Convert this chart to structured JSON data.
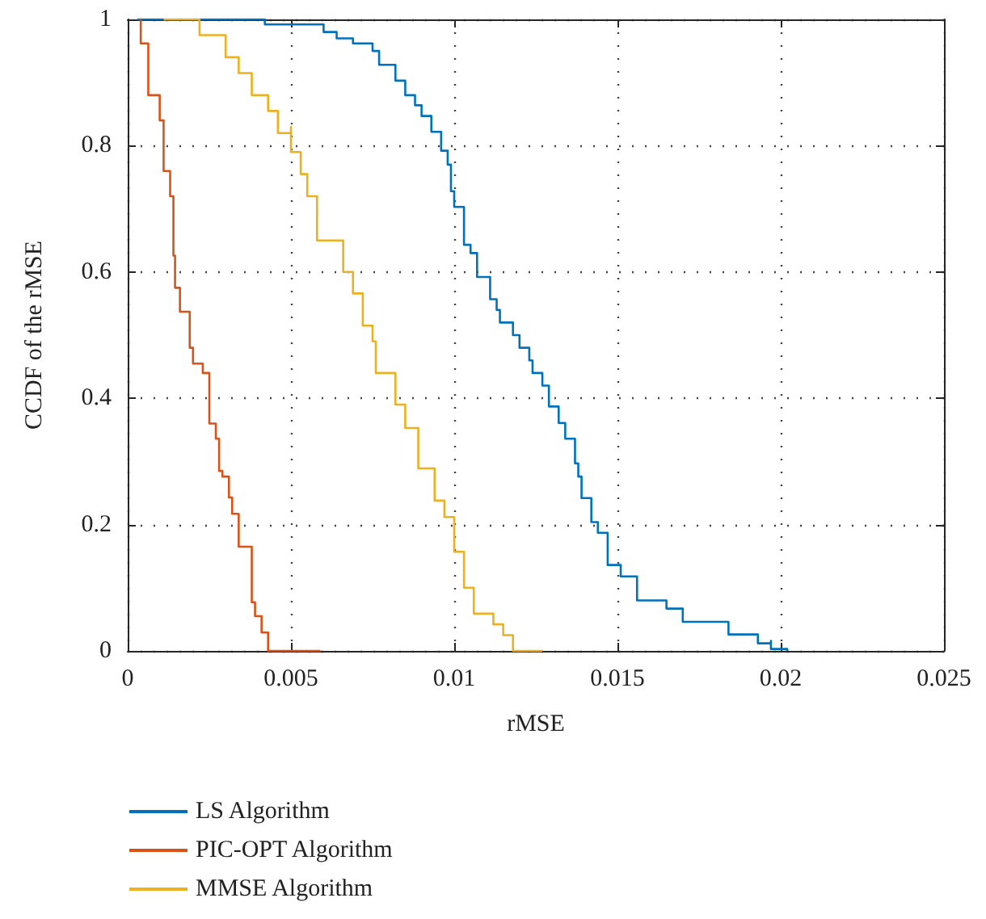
{
  "chart_data": {
    "type": "step",
    "xlabel": "rMSE",
    "ylabel": "CCDF of the rMSE",
    "xlim": [
      0,
      0.025
    ],
    "ylim": [
      0,
      1
    ],
    "xticks": [
      0,
      0.005,
      0.01,
      0.015,
      0.02,
      0.025
    ],
    "yticks": [
      0,
      0.2,
      0.4,
      0.6,
      0.8,
      1
    ],
    "grid": true,
    "legend": "bottom",
    "marker": "none",
    "line_style": "solid",
    "series": [
      {
        "name": "LS Algorithm",
        "color": "#0072bd",
        "x": [
          0.0003,
          0.0042,
          0.0042,
          0.006,
          0.006,
          0.0064,
          0.0069,
          0.0075,
          0.0077,
          0.0082,
          0.0082,
          0.0085,
          0.0088,
          0.009,
          0.0093,
          0.0096,
          0.0098,
          0.0099,
          0.01,
          0.0103,
          0.0103,
          0.0105,
          0.0107,
          0.0107,
          0.0111,
          0.0111,
          0.0113,
          0.0114,
          0.0118,
          0.012,
          0.0123,
          0.0124,
          0.0127,
          0.0129,
          0.0132,
          0.0134,
          0.0137,
          0.0138,
          0.0139,
          0.0142,
          0.0144,
          0.0147,
          0.0147,
          0.0151,
          0.0156,
          0.0156,
          0.0165,
          0.017,
          0.0184,
          0.0184,
          0.0191,
          0.0193,
          0.0197,
          0.0197,
          0.0202,
          0.0202
        ],
        "values": [
          1,
          1,
          0.992,
          0.992,
          0.98,
          0.97,
          0.962,
          0.95,
          0.928,
          0.928,
          0.903,
          0.88,
          0.864,
          0.847,
          0.822,
          0.792,
          0.77,
          0.728,
          0.703,
          0.703,
          0.643,
          0.63,
          0.617,
          0.592,
          0.592,
          0.557,
          0.54,
          0.52,
          0.5,
          0.48,
          0.46,
          0.44,
          0.42,
          0.387,
          0.361,
          0.336,
          0.297,
          0.276,
          0.242,
          0.204,
          0.187,
          0.165,
          0.136,
          0.118,
          0.097,
          0.08,
          0.067,
          0.046,
          0.044,
          0.026,
          0.026,
          0.012,
          0.016,
          0.003,
          0.003,
          0
        ]
      },
      {
        "name": "PIC-OPT Algorithm",
        "color": "#d95319",
        "x": [
          0.0004,
          0.0004,
          0.00063,
          0.00063,
          0.00088,
          0.00098,
          0.0011,
          0.0013,
          0.0014,
          0.00145,
          0.0016,
          0.0016,
          0.0019,
          0.002,
          0.0023,
          0.0025,
          0.0025,
          0.0027,
          0.0028,
          0.0029,
          0.0031,
          0.0032,
          0.0034,
          0.0034,
          0.0038,
          0.0039,
          0.0041,
          0.0043,
          0.0059
        ],
        "values": [
          1,
          0.962,
          0.962,
          0.88,
          0.88,
          0.84,
          0.76,
          0.72,
          0.626,
          0.575,
          0.557,
          0.537,
          0.48,
          0.455,
          0.44,
          0.404,
          0.36,
          0.336,
          0.285,
          0.276,
          0.243,
          0.217,
          0.2,
          0.165,
          0.077,
          0.055,
          0.029,
          0,
          0
        ]
      },
      {
        "name": "MMSE Algorithm",
        "color": "#edb120",
        "x": [
          0.0011,
          0.0022,
          0.0022,
          0.0025,
          0.003,
          0.0034,
          0.0034,
          0.0037,
          0.0038,
          0.0043,
          0.0043,
          0.0046,
          0.0046,
          0.005,
          0.005,
          0.0053,
          0.0053,
          0.0055,
          0.0055,
          0.0058,
          0.0058,
          0.0064,
          0.0066,
          0.0069,
          0.0072,
          0.0072,
          0.0075,
          0.0076,
          0.0082,
          0.0082,
          0.0085,
          0.0085,
          0.0089,
          0.0089,
          0.0094,
          0.0094,
          0.0097,
          0.0097,
          0.01,
          0.0103,
          0.0103,
          0.0106,
          0.0112,
          0.0112,
          0.0115,
          0.0118,
          0.0127
        ],
        "values": [
          1,
          1,
          0.975,
          0.975,
          0.94,
          0.94,
          0.915,
          0.915,
          0.88,
          0.88,
          0.855,
          0.835,
          0.82,
          0.83,
          0.79,
          0.78,
          0.755,
          0.755,
          0.72,
          0.72,
          0.65,
          0.65,
          0.6,
          0.566,
          0.536,
          0.515,
          0.49,
          0.44,
          0.425,
          0.39,
          0.385,
          0.353,
          0.336,
          0.289,
          0.276,
          0.238,
          0.238,
          0.212,
          0.157,
          0.127,
          0.1,
          0.059,
          0.059,
          0.042,
          0.025,
          0,
          0
        ]
      }
    ]
  }
}
